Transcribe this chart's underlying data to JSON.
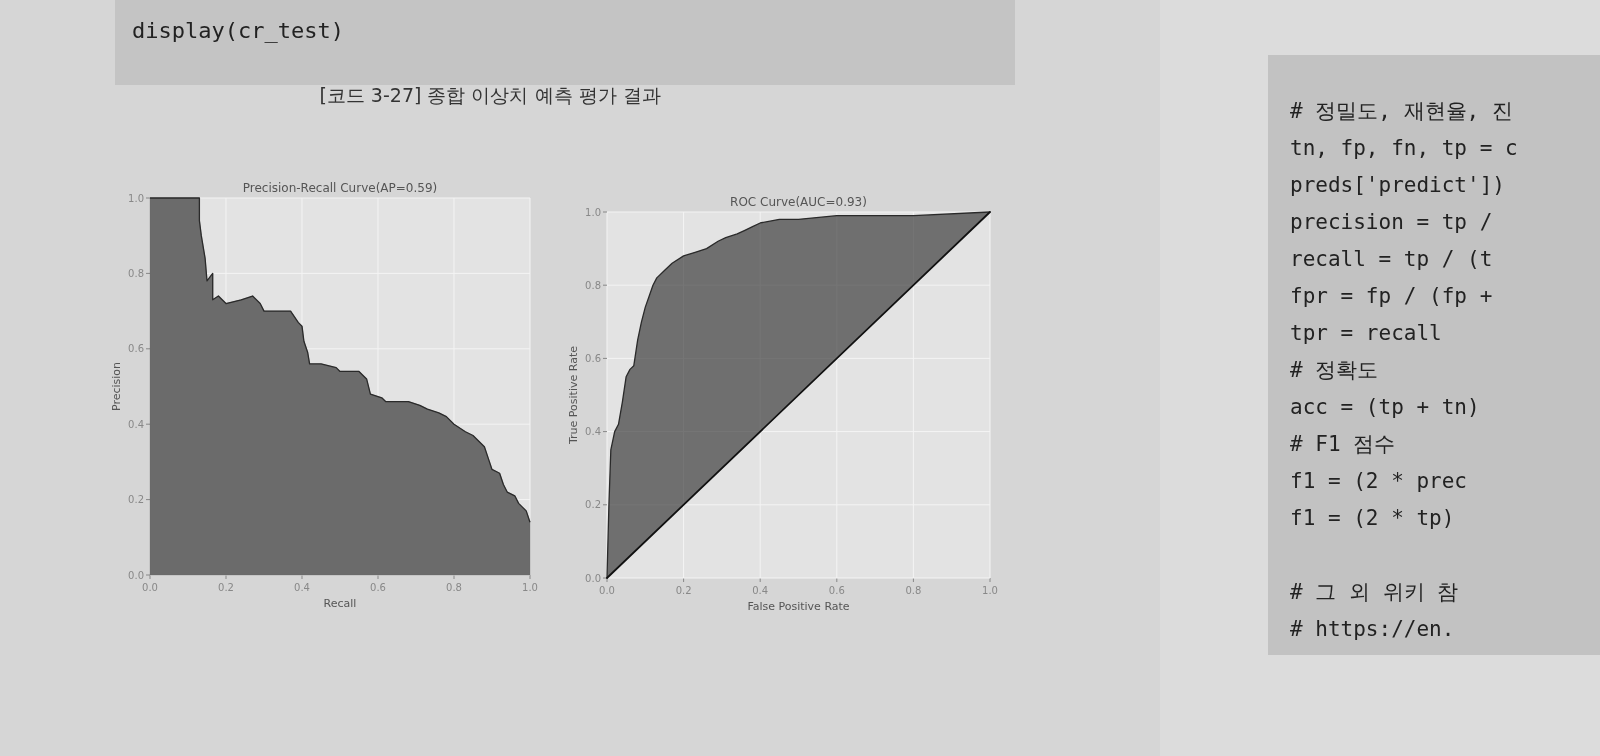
{
  "chart_data": [
    {
      "type": "other",
      "title": "[코드 3-27] 종합 이상치 예측 평가 결과",
      "annotations": [
        "display(cr_test)"
      ]
    },
    {
      "type": "area",
      "title": "Precision-Recall Curve(AP=0.59)",
      "xlabel": "Recall",
      "ylabel": "Precision",
      "xlim": [
        0,
        1
      ],
      "ylim": [
        0,
        1
      ],
      "grid": true,
      "xticks": [
        {
          "value": 0,
          "label": "0.0"
        },
        {
          "value": 0.2,
          "label": "0.2"
        },
        {
          "value": 0.4,
          "label": "0.4"
        },
        {
          "value": 0.6,
          "label": "0.6"
        },
        {
          "value": 0.8,
          "label": "0.8"
        },
        {
          "value": 1,
          "label": "1.0"
        }
      ],
      "yticks": [
        {
          "value": 0,
          "label": "0.0"
        },
        {
          "value": 0.2,
          "label": "0.2"
        },
        {
          "value": 0.4,
          "label": "0.4"
        },
        {
          "value": 0.6,
          "label": "0.6"
        },
        {
          "value": 0.8,
          "label": "0.8"
        },
        {
          "value": 1,
          "label": "1.0"
        }
      ],
      "series": [
        {
          "type": "area",
          "color": "#6b6b6b",
          "x": [
            0,
            0.13,
            0.13,
            0.135,
            0.145,
            0.15,
            0.165,
            0.165,
            0.18,
            0.2,
            0.24,
            0.27,
            0.29,
            0.3,
            0.33,
            0.37,
            0.39,
            0.4,
            0.405,
            0.415,
            0.42,
            0.45,
            0.49,
            0.5,
            0.55,
            0.57,
            0.58,
            0.61,
            0.62,
            0.68,
            0.71,
            0.73,
            0.76,
            0.78,
            0.8,
            0.83,
            0.85,
            0.88,
            0.89,
            0.9,
            0.92,
            0.93,
            0.94,
            0.96,
            0.97,
            0.98,
            0.99,
            1.0
          ],
          "values": [
            1.0,
            1.0,
            0.94,
            0.9,
            0.84,
            0.78,
            0.8,
            0.73,
            0.74,
            0.72,
            0.73,
            0.74,
            0.72,
            0.7,
            0.7,
            0.7,
            0.67,
            0.66,
            0.62,
            0.59,
            0.56,
            0.56,
            0.55,
            0.54,
            0.54,
            0.52,
            0.48,
            0.47,
            0.46,
            0.46,
            0.45,
            0.44,
            0.43,
            0.42,
            0.4,
            0.38,
            0.37,
            0.34,
            0.31,
            0.28,
            0.27,
            0.24,
            0.22,
            0.21,
            0.19,
            0.18,
            0.17,
            0.14
          ]
        }
      ]
    },
    {
      "type": "line",
      "title": "ROC Curve(AUC=0.93)",
      "xlabel": "False Positive Rate",
      "ylabel": "True Positive Rate",
      "xlim": [
        0,
        1
      ],
      "ylim": [
        0,
        1
      ],
      "grid": true,
      "xticks": [
        {
          "value": 0,
          "label": "0.0"
        },
        {
          "value": 0.2,
          "label": "0.2"
        },
        {
          "value": 0.4,
          "label": "0.4"
        },
        {
          "value": 0.6,
          "label": "0.6"
        },
        {
          "value": 0.8,
          "label": "0.8"
        },
        {
          "value": 1,
          "label": "1.0"
        }
      ],
      "yticks": [
        {
          "value": 0,
          "label": "0.0"
        },
        {
          "value": 0.2,
          "label": "0.2"
        },
        {
          "value": 0.4,
          "label": "0.4"
        },
        {
          "value": 0.6,
          "label": "0.6"
        },
        {
          "value": 0.8,
          "label": "0.8"
        },
        {
          "value": 1,
          "label": "1.0"
        }
      ],
      "series": [
        {
          "type": "line",
          "color": "#2a2a2a",
          "x": [
            0,
            0.005,
            0.01,
            0.02,
            0.03,
            0.04,
            0.05,
            0.06,
            0.07,
            0.08,
            0.09,
            0.1,
            0.11,
            0.12,
            0.13,
            0.15,
            0.17,
            0.2,
            0.23,
            0.26,
            0.29,
            0.31,
            0.34,
            0.36,
            0.38,
            0.4,
            0.45,
            0.5,
            0.6,
            0.8,
            1.0
          ],
          "values": [
            0,
            0.2,
            0.35,
            0.4,
            0.42,
            0.48,
            0.55,
            0.57,
            0.58,
            0.65,
            0.7,
            0.74,
            0.77,
            0.8,
            0.82,
            0.84,
            0.86,
            0.88,
            0.89,
            0.9,
            0.92,
            0.93,
            0.94,
            0.95,
            0.96,
            0.97,
            0.98,
            0.98,
            0.99,
            0.99,
            1.0
          ],
          "lower": [
            0,
            0.005,
            0.01,
            0.02,
            0.03,
            0.04,
            0.05,
            0.06,
            0.07,
            0.08,
            0.09,
            0.1,
            0.11,
            0.12,
            0.13,
            0.15,
            0.17,
            0.2,
            0.23,
            0.26,
            0.29,
            0.31,
            0.34,
            0.36,
            0.38,
            0.4,
            0.45,
            0.5,
            0.6,
            0.8,
            1.0
          ],
          "upper": [
            0,
            0.2,
            0.35,
            0.4,
            0.42,
            0.48,
            0.55,
            0.57,
            0.58,
            0.65,
            0.7,
            0.74,
            0.77,
            0.8,
            0.82,
            0.84,
            0.86,
            0.88,
            0.89,
            0.9,
            0.92,
            0.93,
            0.94,
            0.95,
            0.96,
            0.97,
            0.98,
            0.98,
            0.99,
            0.99,
            1.0
          ]
        },
        {
          "type": "line",
          "color": "#111111",
          "x": [
            0,
            1
          ],
          "values": [
            0,
            1
          ]
        }
      ]
    },
    {
      "type": "other",
      "annotations": [
        "# 정밀도, 재현율, 진",
        "tn, fp, fn, tp = c",
        "preds['predict'])",
        "precision = tp /",
        "recall = tp / (t",
        "fpr = fp / (fp +",
        "tpr = recall",
        "# 정확도",
        "acc = (tp + tn)",
        "# F1 점수",
        "f1 = (2 * prec",
        "f1 = (2 * tp)",
        "# 그 외 위키 참",
        "# https://en."
      ]
    }
  ]
}
